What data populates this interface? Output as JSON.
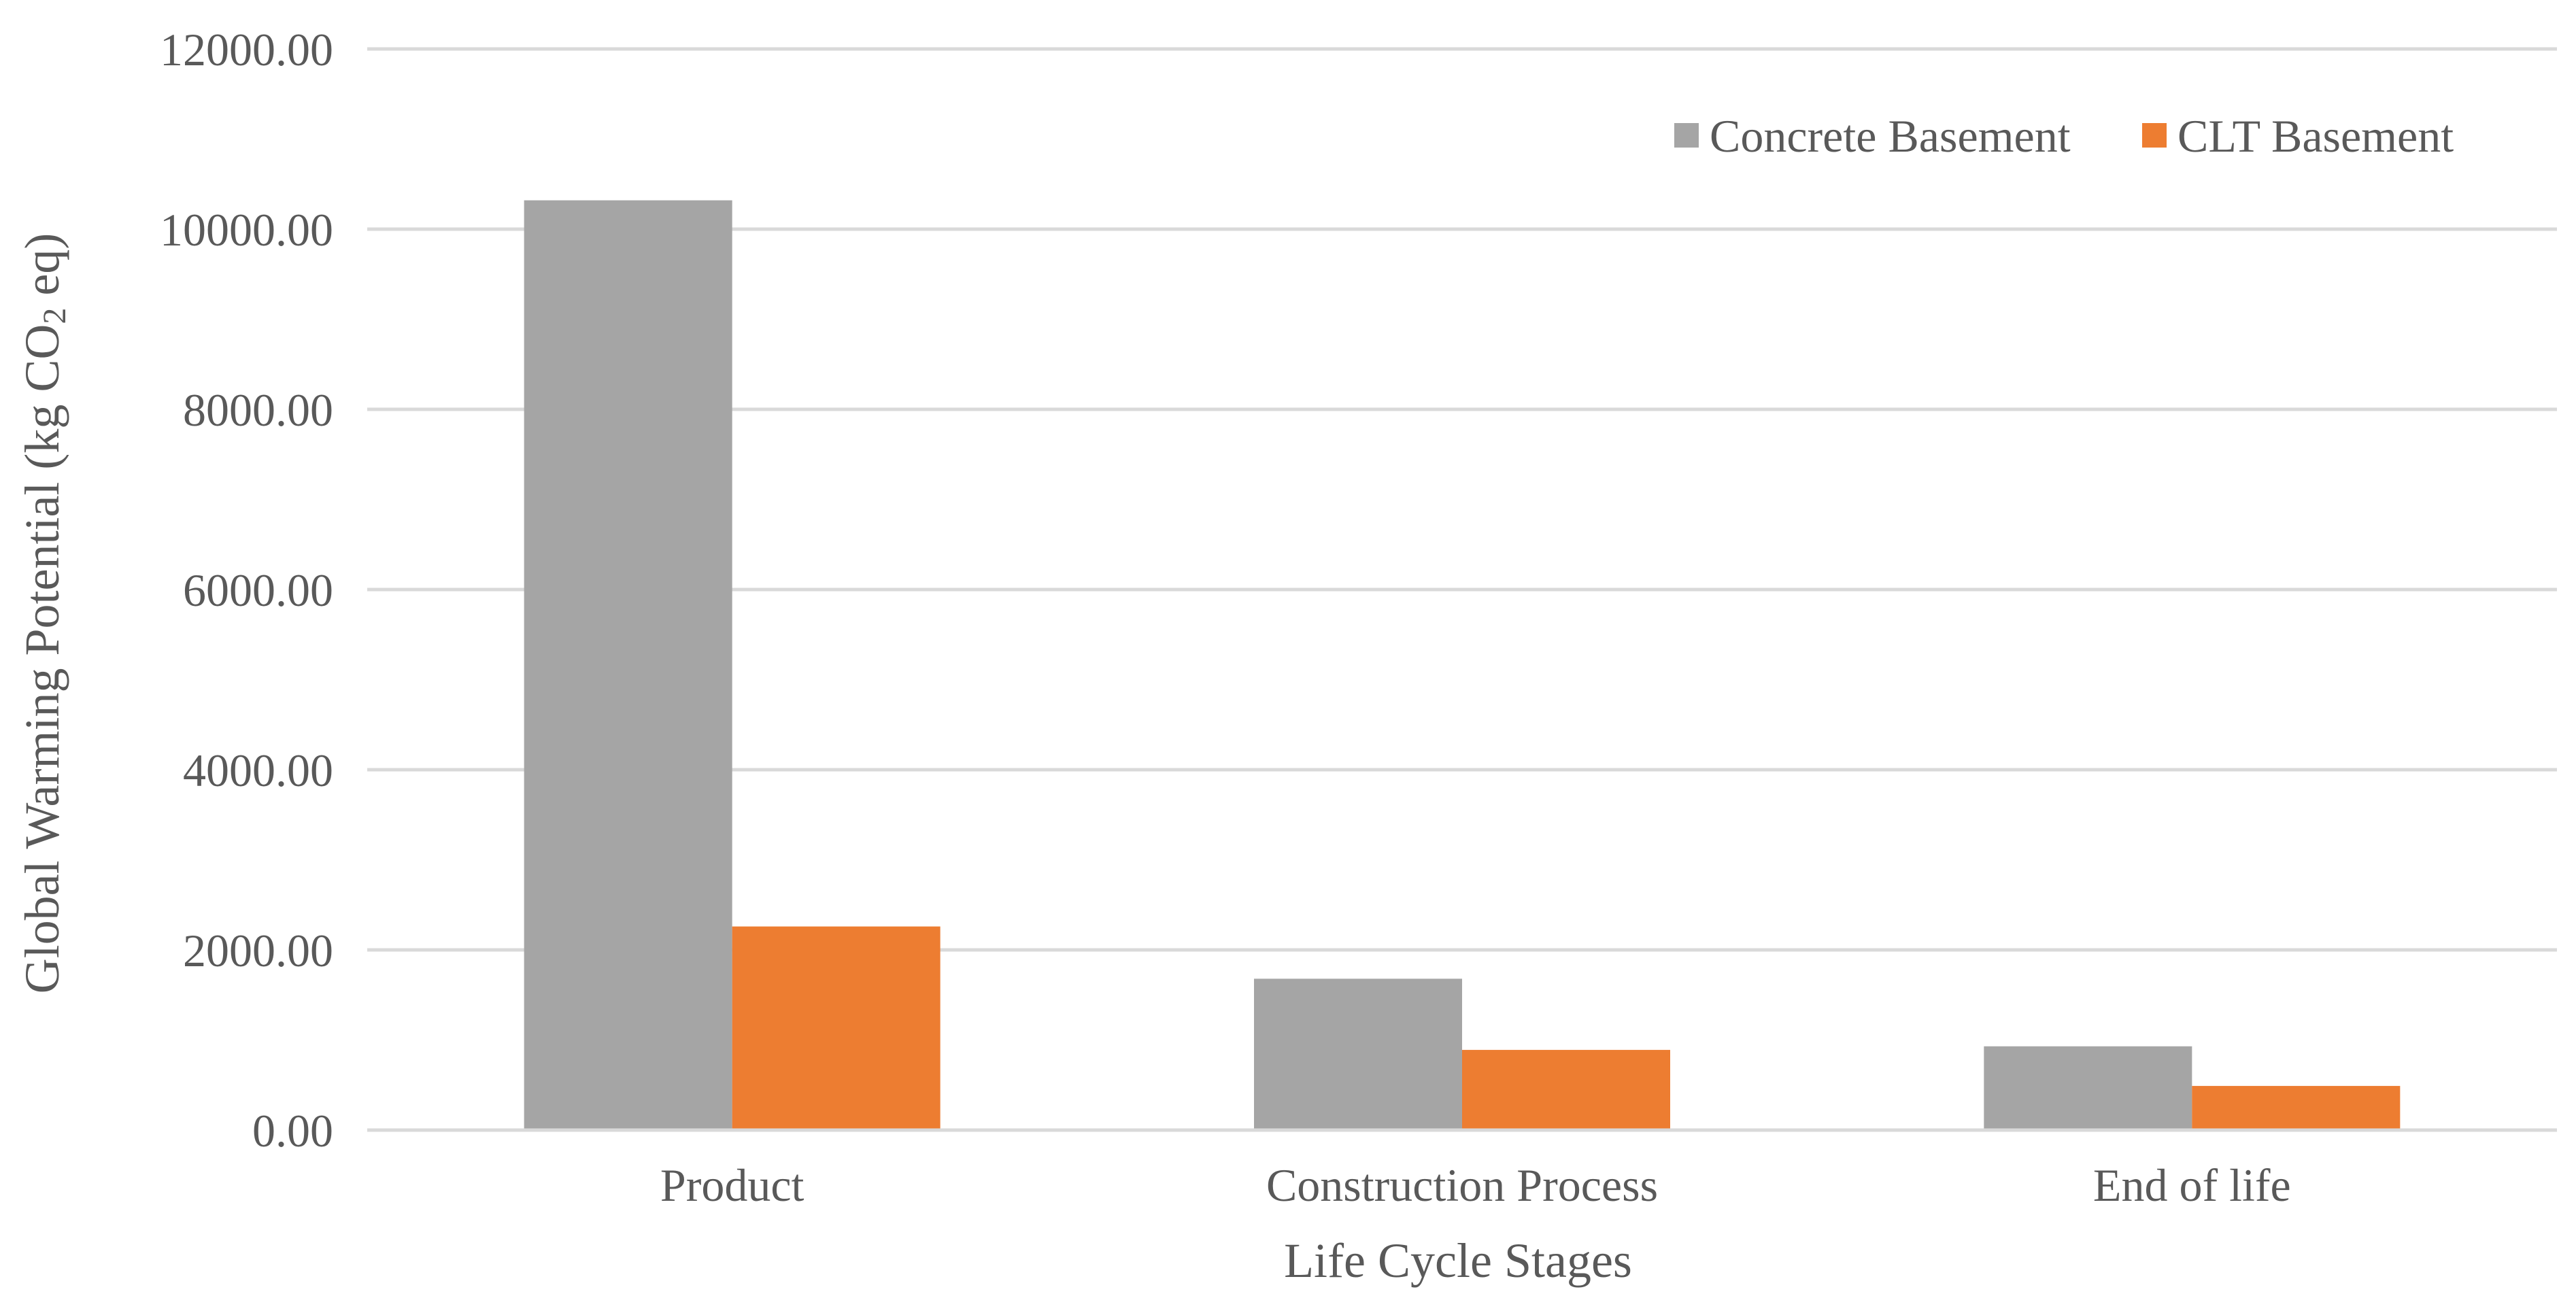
{
  "chart_data": {
    "type": "bar",
    "title": "",
    "xlabel": "Life Cycle Stages",
    "ylabel_main": "Global Warming Potential (kg CO",
    "ylabel_sub": "2",
    "ylabel_end": " eq)",
    "categories": [
      "Product",
      "Construction Process",
      "End of life"
    ],
    "series": [
      {
        "name": "Concrete Basement",
        "color": "#A5A5A5",
        "values": [
          10320,
          1680,
          930
        ]
      },
      {
        "name": "CLT Basement",
        "color": "#ED7D31",
        "values": [
          2260,
          890,
          490
        ]
      }
    ],
    "ylim": [
      0,
      12000
    ],
    "yticks": [
      0,
      2000,
      4000,
      6000,
      8000,
      10000,
      12000
    ],
    "ytick_labels": [
      "0.00",
      "2000.00",
      "4000.00",
      "6000.00",
      "8000.00",
      "10000.00",
      "12000.00"
    ],
    "grid": true,
    "gridline_color": "#D9D9D9",
    "legend_position": "top-right"
  }
}
